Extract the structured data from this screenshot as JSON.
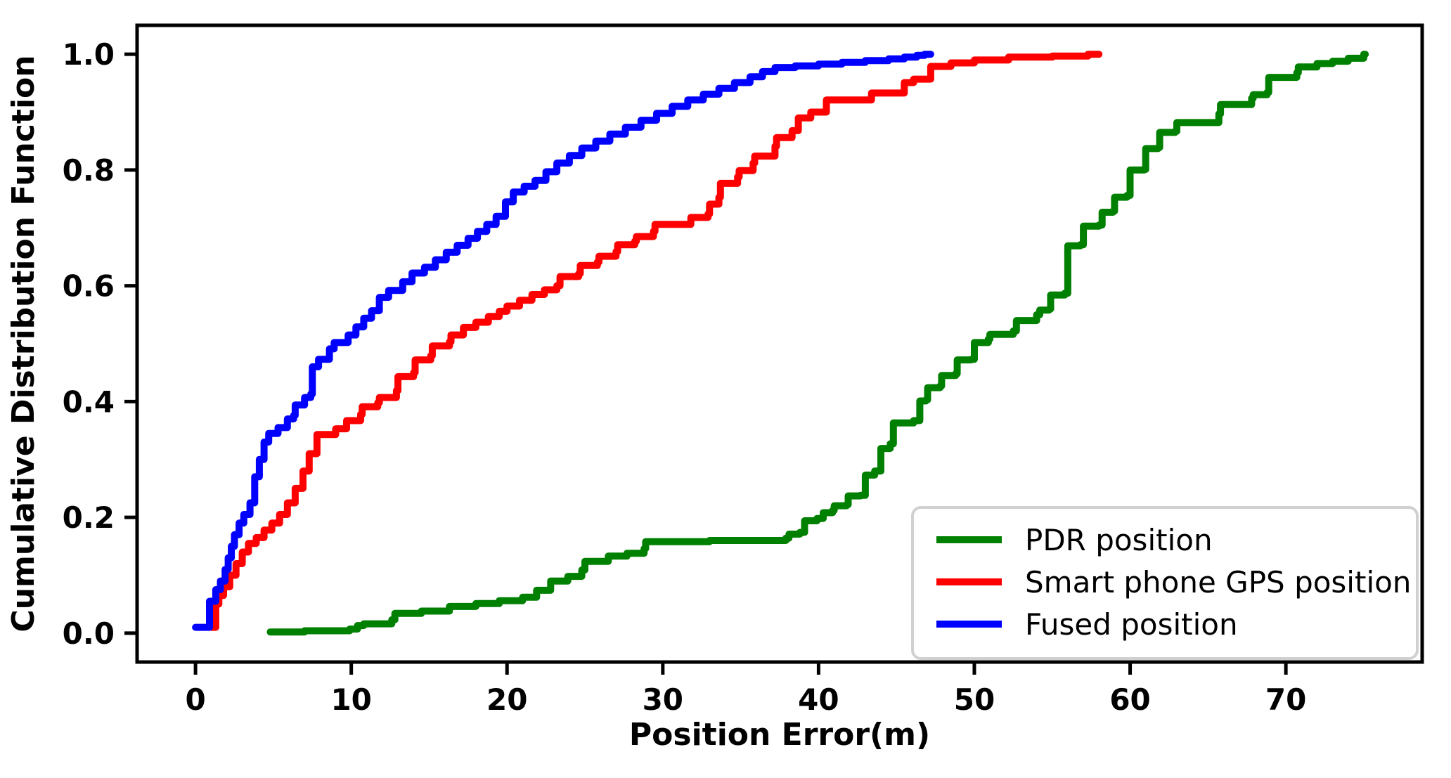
{
  "chart_data": {
    "type": "line",
    "subtype": "step-cdf",
    "title": "",
    "xlabel": "Position Error(m)",
    "ylabel": "Cumulative Distribution Function",
    "xlim": [
      -3.75,
      78.75
    ],
    "ylim": [
      -0.05,
      1.05
    ],
    "xticks": [
      0,
      10,
      20,
      30,
      40,
      50,
      60,
      70
    ],
    "xtick_labels": [
      "0",
      "10",
      "20",
      "30",
      "40",
      "50",
      "60",
      "70"
    ],
    "yticks": [
      0.0,
      0.2,
      0.4,
      0.6,
      0.8,
      1.0
    ],
    "ytick_labels": [
      "0.0",
      "0.2",
      "0.4",
      "0.6",
      "0.8",
      "1.0"
    ],
    "grid": false,
    "legend_position": "lower right",
    "axis_color": "#000000",
    "background_color": "#ffffff",
    "legend_border_color": "#d0d0d0",
    "series": [
      {
        "name": "PDR position",
        "color": "#008000",
        "points": [
          [
            4.8,
            0.002
          ],
          [
            7.0,
            0.004
          ],
          [
            9.9,
            0.007
          ],
          [
            10.4,
            0.013
          ],
          [
            10.8,
            0.016
          ],
          [
            12.6,
            0.023
          ],
          [
            12.8,
            0.034
          ],
          [
            14.5,
            0.038
          ],
          [
            16.3,
            0.046
          ],
          [
            18.0,
            0.051
          ],
          [
            19.5,
            0.056
          ],
          [
            21.0,
            0.062
          ],
          [
            21.9,
            0.074
          ],
          [
            22.8,
            0.09
          ],
          [
            23.9,
            0.098
          ],
          [
            24.8,
            0.109
          ],
          [
            25.0,
            0.124
          ],
          [
            26.5,
            0.133
          ],
          [
            27.7,
            0.138
          ],
          [
            28.8,
            0.146
          ],
          [
            28.9,
            0.158
          ],
          [
            33.0,
            0.16
          ],
          [
            37.9,
            0.164
          ],
          [
            38.1,
            0.171
          ],
          [
            38.8,
            0.174
          ],
          [
            39.1,
            0.194
          ],
          [
            39.9,
            0.198
          ],
          [
            40.3,
            0.208
          ],
          [
            40.9,
            0.212
          ],
          [
            41.0,
            0.22
          ],
          [
            41.8,
            0.222
          ],
          [
            41.9,
            0.237
          ],
          [
            42.7,
            0.238
          ],
          [
            43.0,
            0.273
          ],
          [
            43.6,
            0.28
          ],
          [
            44.0,
            0.319
          ],
          [
            44.6,
            0.327
          ],
          [
            44.8,
            0.363
          ],
          [
            46.1,
            0.367
          ],
          [
            46.5,
            0.401
          ],
          [
            46.9,
            0.403
          ],
          [
            47.0,
            0.424
          ],
          [
            47.8,
            0.427
          ],
          [
            47.9,
            0.445
          ],
          [
            48.8,
            0.448
          ],
          [
            48.9,
            0.472
          ],
          [
            49.8,
            0.473
          ],
          [
            50.0,
            0.502
          ],
          [
            50.9,
            0.508
          ],
          [
            51.0,
            0.516
          ],
          [
            52.5,
            0.522
          ],
          [
            52.7,
            0.54
          ],
          [
            54.0,
            0.55
          ],
          [
            54.2,
            0.558
          ],
          [
            54.8,
            0.56
          ],
          [
            54.9,
            0.584
          ],
          [
            55.8,
            0.587
          ],
          [
            56.0,
            0.669
          ],
          [
            56.8,
            0.671
          ],
          [
            57.0,
            0.703
          ],
          [
            58.0,
            0.705
          ],
          [
            58.2,
            0.727
          ],
          [
            58.9,
            0.729
          ],
          [
            59.0,
            0.753
          ],
          [
            59.8,
            0.756
          ],
          [
            60.0,
            0.8
          ],
          [
            60.9,
            0.801
          ],
          [
            61.0,
            0.837
          ],
          [
            61.8,
            0.839
          ],
          [
            61.9,
            0.865
          ],
          [
            62.9,
            0.867
          ],
          [
            63.0,
            0.882
          ],
          [
            65.7,
            0.897
          ],
          [
            65.8,
            0.913
          ],
          [
            67.8,
            0.924
          ],
          [
            67.9,
            0.93
          ],
          [
            68.8,
            0.934
          ],
          [
            68.9,
            0.96
          ],
          [
            70.7,
            0.968
          ],
          [
            70.8,
            0.978
          ],
          [
            72.0,
            0.984
          ],
          [
            73.0,
            0.988
          ],
          [
            74.0,
            0.993
          ],
          [
            75.0,
            1.0
          ],
          [
            75.1,
            1.0
          ]
        ]
      },
      {
        "name": "Smart phone GPS position",
        "color": "#ff0000",
        "points": [
          [
            1.0,
            0.01
          ],
          [
            1.3,
            0.05
          ],
          [
            1.5,
            0.065
          ],
          [
            1.8,
            0.08
          ],
          [
            2.2,
            0.1
          ],
          [
            2.6,
            0.12
          ],
          [
            3.0,
            0.14
          ],
          [
            3.4,
            0.155
          ],
          [
            3.9,
            0.165
          ],
          [
            4.4,
            0.178
          ],
          [
            4.9,
            0.19
          ],
          [
            5.4,
            0.205
          ],
          [
            5.9,
            0.225
          ],
          [
            6.4,
            0.25
          ],
          [
            6.9,
            0.28
          ],
          [
            7.3,
            0.31
          ],
          [
            7.8,
            0.343
          ],
          [
            9.0,
            0.353
          ],
          [
            9.7,
            0.367
          ],
          [
            10.6,
            0.378
          ],
          [
            10.7,
            0.391
          ],
          [
            11.7,
            0.398
          ],
          [
            11.8,
            0.407
          ],
          [
            12.9,
            0.419
          ],
          [
            13.0,
            0.443
          ],
          [
            14.0,
            0.45
          ],
          [
            14.1,
            0.472
          ],
          [
            15.1,
            0.479
          ],
          [
            15.2,
            0.496
          ],
          [
            16.3,
            0.503
          ],
          [
            16.4,
            0.515
          ],
          [
            17.2,
            0.528
          ],
          [
            18.0,
            0.537
          ],
          [
            18.8,
            0.547
          ],
          [
            19.5,
            0.556
          ],
          [
            20.0,
            0.565
          ],
          [
            20.8,
            0.575
          ],
          [
            21.6,
            0.585
          ],
          [
            22.4,
            0.593
          ],
          [
            23.2,
            0.6
          ],
          [
            23.4,
            0.616
          ],
          [
            24.6,
            0.621
          ],
          [
            24.7,
            0.635
          ],
          [
            25.8,
            0.641
          ],
          [
            25.9,
            0.651
          ],
          [
            27.0,
            0.659
          ],
          [
            27.1,
            0.671
          ],
          [
            28.2,
            0.677
          ],
          [
            28.3,
            0.685
          ],
          [
            29.4,
            0.694
          ],
          [
            29.5,
            0.706
          ],
          [
            31.8,
            0.718
          ],
          [
            32.9,
            0.724
          ],
          [
            33.0,
            0.741
          ],
          [
            33.6,
            0.753
          ],
          [
            33.7,
            0.777
          ],
          [
            34.8,
            0.788
          ],
          [
            34.9,
            0.799
          ],
          [
            35.8,
            0.812
          ],
          [
            35.9,
            0.824
          ],
          [
            37.2,
            0.841
          ],
          [
            37.3,
            0.856
          ],
          [
            38.3,
            0.868
          ],
          [
            38.7,
            0.89
          ],
          [
            39.5,
            0.9
          ],
          [
            40.5,
            0.921
          ],
          [
            43.4,
            0.933
          ],
          [
            45.5,
            0.951
          ],
          [
            46.1,
            0.957
          ],
          [
            47.2,
            0.979
          ],
          [
            48.5,
            0.985
          ],
          [
            50.0,
            0.99
          ],
          [
            52.2,
            0.995
          ],
          [
            55.0,
            0.997
          ],
          [
            57.3,
            1.0
          ],
          [
            58.0,
            1.0
          ]
        ]
      },
      {
        "name": "Fused position",
        "color": "#0000ff",
        "points": [
          [
            0.0,
            0.01
          ],
          [
            0.9,
            0.055
          ],
          [
            1.3,
            0.075
          ],
          [
            1.6,
            0.09
          ],
          [
            1.9,
            0.11
          ],
          [
            2.1,
            0.13
          ],
          [
            2.3,
            0.15
          ],
          [
            2.5,
            0.17
          ],
          [
            2.8,
            0.19
          ],
          [
            3.1,
            0.205
          ],
          [
            3.5,
            0.225
          ],
          [
            3.8,
            0.27
          ],
          [
            4.1,
            0.3
          ],
          [
            4.4,
            0.33
          ],
          [
            4.7,
            0.345
          ],
          [
            5.3,
            0.355
          ],
          [
            5.9,
            0.37
          ],
          [
            6.3,
            0.376
          ],
          [
            6.4,
            0.394
          ],
          [
            7.0,
            0.407
          ],
          [
            7.4,
            0.413
          ],
          [
            7.5,
            0.46
          ],
          [
            7.9,
            0.473
          ],
          [
            8.6,
            0.491
          ],
          [
            8.9,
            0.502
          ],
          [
            9.8,
            0.515
          ],
          [
            10.3,
            0.529
          ],
          [
            10.8,
            0.544
          ],
          [
            11.3,
            0.557
          ],
          [
            11.8,
            0.58
          ],
          [
            12.4,
            0.592
          ],
          [
            13.3,
            0.607
          ],
          [
            13.9,
            0.622
          ],
          [
            14.7,
            0.632
          ],
          [
            15.4,
            0.645
          ],
          [
            16.1,
            0.658
          ],
          [
            16.8,
            0.67
          ],
          [
            17.5,
            0.682
          ],
          [
            18.1,
            0.694
          ],
          [
            18.7,
            0.706
          ],
          [
            19.3,
            0.72
          ],
          [
            19.9,
            0.745
          ],
          [
            20.4,
            0.762
          ],
          [
            21.1,
            0.772
          ],
          [
            21.8,
            0.782
          ],
          [
            22.5,
            0.797
          ],
          [
            23.2,
            0.812
          ],
          [
            24.0,
            0.825
          ],
          [
            24.8,
            0.838
          ],
          [
            25.7,
            0.85
          ],
          [
            26.6,
            0.862
          ],
          [
            27.6,
            0.874
          ],
          [
            28.6,
            0.886
          ],
          [
            29.6,
            0.898
          ],
          [
            30.6,
            0.91
          ],
          [
            31.6,
            0.921
          ],
          [
            32.6,
            0.931
          ],
          [
            33.6,
            0.941
          ],
          [
            34.6,
            0.951
          ],
          [
            35.6,
            0.961
          ],
          [
            36.4,
            0.97
          ],
          [
            37.2,
            0.977
          ],
          [
            38.5,
            0.98
          ],
          [
            40.0,
            0.983
          ],
          [
            41.5,
            0.986
          ],
          [
            43.0,
            0.989
          ],
          [
            44.5,
            0.992
          ],
          [
            45.5,
            0.995
          ],
          [
            46.3,
            0.998
          ],
          [
            46.8,
            1.0
          ],
          [
            47.2,
            1.0
          ]
        ]
      }
    ],
    "legend_entries": [
      "PDR position",
      "Smart phone GPS position",
      "Fused position"
    ]
  }
}
